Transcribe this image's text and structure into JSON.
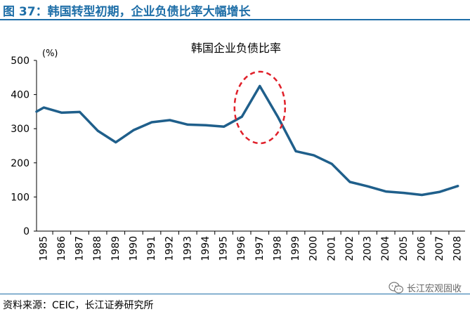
{
  "figure": {
    "title": "图 37：韩国转型初期，企业负债比率大幅增长",
    "source": "资料来源：CEIC，长江证券研究所",
    "watermark": "长江宏观固收",
    "watermark_icon": "wechat-icon"
  },
  "colors": {
    "line": "#1f5f8b",
    "accent": "#1f6fa8",
    "highlight": "#e0202a"
  },
  "chart_data": {
    "type": "line",
    "title": "韩国企业负债比率",
    "ylabel": "(%)",
    "xlabel": "",
    "ylim": [
      0,
      500
    ],
    "yticks": [
      "0",
      "100",
      "200",
      "300",
      "400",
      "500"
    ],
    "categories": [
      "1985",
      "1986",
      "1987",
      "1988",
      "1989",
      "1990",
      "1991",
      "1992",
      "1993",
      "1994",
      "1995",
      "1996",
      "1997",
      "1998",
      "1999",
      "2000",
      "2001",
      "2002",
      "2003",
      "2004",
      "2005",
      "2006",
      "2007",
      "2008"
    ],
    "x": [
      1984.6,
      1985,
      1986,
      1987,
      1988,
      1989,
      1990,
      1991,
      1992,
      1993,
      1994,
      1995,
      1996,
      1997,
      1998,
      1999,
      2000,
      2001,
      2002,
      2003,
      2004,
      2005,
      2006,
      2007,
      2008
    ],
    "values": [
      350,
      362,
      347,
      349,
      294,
      260,
      296,
      319,
      325,
      312,
      310,
      306,
      335,
      425,
      335,
      234,
      222,
      197,
      144,
      131,
      116,
      112,
      106,
      115,
      132
    ],
    "series": [
      {
        "name": "企业负债比率",
        "values": [
          350,
          362,
          347,
          349,
          294,
          260,
          296,
          319,
          325,
          312,
          310,
          306,
          335,
          425,
          335,
          234,
          222,
          197,
          144,
          131,
          116,
          112,
          106,
          115,
          132
        ]
      }
    ],
    "annotation": {
      "type": "ellipse",
      "year": 1997,
      "description": "peak highlight"
    }
  }
}
